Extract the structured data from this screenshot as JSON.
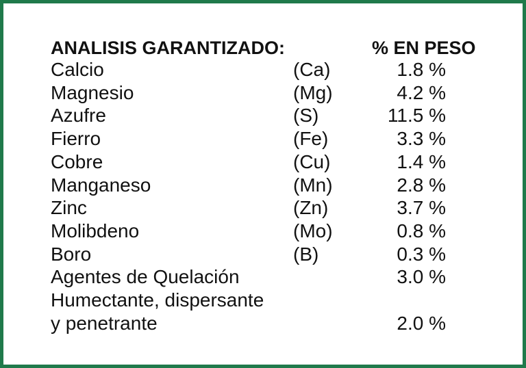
{
  "header": {
    "title": "ANALISIS GARANTIZADO:",
    "unit": "% EN PESO"
  },
  "table": {
    "rows": [
      {
        "name": "Calcio",
        "symbol": "(Ca)",
        "value": "1.8 %"
      },
      {
        "name": "Magnesio",
        "symbol": "(Mg)",
        "value": "4.2 %"
      },
      {
        "name": "Azufre",
        "symbol": "(S)",
        "value": "11.5 %"
      },
      {
        "name": "Fierro",
        "symbol": "(Fe)",
        "value": "3.3 %"
      },
      {
        "name": "Cobre",
        "symbol": "(Cu)",
        "value": "1.4 %"
      },
      {
        "name": "Manganeso",
        "symbol": "(Mn)",
        "value": "2.8 %"
      },
      {
        "name": "Zinc",
        "symbol": "(Zn)",
        "value": "3.7 %"
      },
      {
        "name": "Molibdeno",
        "symbol": "(Mo)",
        "value": "0.8 %"
      },
      {
        "name": "Boro",
        "symbol": "(B)",
        "value": "0.3 %"
      },
      {
        "name": "Agentes de Quelación",
        "value": "3.0 %"
      },
      {
        "name": "Humectante, dispersante"
      },
      {
        "name": "y penetrante",
        "value": "2.0 %"
      }
    ]
  }
}
